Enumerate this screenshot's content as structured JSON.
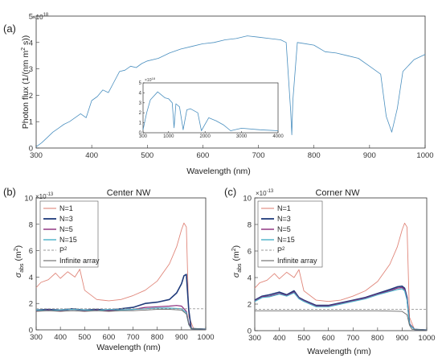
{
  "colors": {
    "spectrum": "#4a8fbf",
    "n1": "#e0867a",
    "n3": "#1f3a7a",
    "n5": "#8a2a7a",
    "n15": "#4ab0c8",
    "p2": "#999999",
    "infinite": "#666666",
    "axis": "#333333"
  },
  "panel_a": {
    "label": "(a)",
    "exponent": "×10",
    "exponent_power": "18",
    "ylabel": "Photon flux  (1/(nm m",
    "ylabel_sup": "2",
    "ylabel_end": " s))",
    "xlabel": "Wavelength (nm)"
  },
  "panel_b": {
    "label": "(b)",
    "title": "Center NW",
    "exponent": "×10",
    "exponent_power": "-13",
    "ylabel_sym": "σ",
    "ylabel_sub": "abs",
    "ylabel_unit": " (m",
    "ylabel_sup": "2",
    "ylabel_close": ")",
    "xlabel": "Wavelength (nm)"
  },
  "panel_c": {
    "label": "(c)",
    "title": "Corner NW",
    "exponent": "×10",
    "exponent_power": "-13",
    "ylabel_sym": "σ",
    "ylabel_sub": "abs",
    "ylabel_unit": " (m",
    "ylabel_sup": "2",
    "ylabel_close": ")",
    "xlabel": "Wavelength (nm)"
  },
  "legend": [
    {
      "key": "n1",
      "label": "N=1",
      "style": "solid"
    },
    {
      "key": "n3",
      "label": "N=3",
      "style": "solid"
    },
    {
      "key": "n5",
      "label": "N=5",
      "style": "solid"
    },
    {
      "key": "n15",
      "label": "N=15",
      "style": "solid"
    },
    {
      "key": "p2",
      "label": "P",
      "sup": "2",
      "style": "dashed"
    },
    {
      "key": "infinite",
      "label": "Infinite array",
      "style": "solid"
    }
  ],
  "chart_data": [
    {
      "type": "line",
      "title": "",
      "xlabel": "Wavelength (nm)",
      "ylabel": "Photon flux (1/(nm m^2 s))",
      "y_scale_exponent": 18,
      "xlim": [
        300,
        1000
      ],
      "ylim": [
        0,
        5
      ],
      "xticks": [
        300,
        400,
        500,
        600,
        700,
        800,
        900,
        1000
      ],
      "yticks": [
        0,
        1,
        2,
        3,
        4,
        5
      ],
      "series": [
        {
          "x": [
            300,
            310,
            320,
            330,
            340,
            350,
            360,
            370,
            380,
            390,
            400,
            410,
            420,
            430,
            440,
            450,
            460,
            470,
            480,
            490,
            500,
            520,
            540,
            560,
            580,
            600,
            620,
            640,
            660,
            680,
            700,
            720,
            740,
            750,
            758,
            760,
            762,
            770,
            800,
            820,
            840,
            860,
            880,
            900,
            920,
            930,
            940,
            950,
            960,
            980,
            1000
          ],
          "y": [
            0.05,
            0.2,
            0.4,
            0.6,
            0.75,
            0.9,
            1.0,
            1.15,
            1.3,
            1.15,
            1.8,
            1.95,
            2.2,
            2.1,
            2.5,
            2.9,
            2.95,
            3.1,
            3.05,
            3.2,
            3.3,
            3.4,
            3.6,
            3.75,
            3.85,
            3.95,
            4.0,
            4.1,
            4.15,
            4.25,
            4.2,
            4.15,
            4.1,
            4.0,
            1.4,
            0.5,
            1.8,
            4.0,
            3.9,
            3.65,
            3.6,
            3.5,
            3.4,
            3.1,
            2.8,
            1.2,
            0.6,
            1.5,
            2.9,
            3.35,
            3.55
          ]
        }
      ],
      "inset": {
        "xlim": [
          300,
          4000
        ],
        "ylim": [
          0,
          5
        ],
        "xticks": [
          300,
          1000,
          2000,
          3000,
          4000
        ],
        "yticks": [
          0,
          1,
          2,
          3,
          4,
          5
        ],
        "x": [
          300,
          400,
          500,
          700,
          900,
          1000,
          1100,
          1150,
          1200,
          1300,
          1400,
          1500,
          1600,
          1800,
          1900,
          2100,
          2300,
          2500,
          2700,
          3000,
          3500,
          4000
        ],
        "y": [
          0.3,
          2.0,
          3.3,
          4.1,
          3.5,
          3.4,
          3.0,
          0.5,
          2.9,
          2.6,
          0.3,
          2.3,
          2.4,
          2.0,
          0.2,
          1.5,
          1.2,
          0.8,
          0.2,
          0.45,
          0.3,
          0.2
        ]
      }
    },
    {
      "type": "line",
      "title": "Center NW",
      "xlabel": "Wavelength (nm)",
      "ylabel": "σ_abs (m^2)",
      "y_scale_exponent": -13,
      "xlim": [
        300,
        1000
      ],
      "ylim": [
        0,
        10
      ],
      "xticks": [
        300,
        400,
        500,
        600,
        700,
        800,
        900,
        1000
      ],
      "yticks": [
        0,
        2,
        4,
        6,
        8,
        10
      ],
      "series": [
        {
          "name": "N=1",
          "x": [
            300,
            320,
            350,
            380,
            400,
            430,
            460,
            480,
            500,
            550,
            600,
            650,
            700,
            750,
            800,
            850,
            880,
            900,
            910,
            920,
            930,
            950,
            1000
          ],
          "y": [
            3.2,
            3.6,
            3.8,
            4.3,
            3.9,
            4.4,
            4.0,
            4.6,
            3.0,
            2.3,
            2.2,
            2.3,
            2.6,
            3.0,
            3.7,
            5.0,
            6.3,
            7.6,
            8.1,
            7.8,
            1.0,
            0.1,
            0.05
          ]
        },
        {
          "name": "N=3",
          "x": [
            300,
            350,
            400,
            450,
            500,
            550,
            600,
            650,
            700,
            750,
            800,
            850,
            880,
            900,
            910,
            920,
            930,
            940,
            1000
          ],
          "y": [
            1.5,
            1.55,
            1.5,
            1.6,
            1.5,
            1.55,
            1.5,
            1.6,
            1.7,
            2.0,
            2.1,
            2.3,
            2.8,
            3.5,
            4.1,
            4.2,
            1.5,
            0.1,
            0.05
          ]
        },
        {
          "name": "N=5",
          "x": [
            300,
            350,
            400,
            450,
            500,
            550,
            600,
            650,
            700,
            750,
            800,
            850,
            880,
            900,
            920,
            930,
            940,
            1000
          ],
          "y": [
            1.45,
            1.5,
            1.45,
            1.55,
            1.45,
            1.5,
            1.45,
            1.5,
            1.55,
            1.7,
            1.75,
            1.8,
            1.85,
            1.8,
            1.4,
            0.5,
            0.1,
            0.05
          ]
        },
        {
          "name": "N=15",
          "x": [
            300,
            350,
            400,
            450,
            500,
            550,
            600,
            650,
            700,
            750,
            800,
            850,
            900,
            920,
            930,
            940,
            1000
          ],
          "y": [
            1.5,
            1.45,
            1.5,
            1.55,
            1.5,
            1.45,
            1.55,
            1.5,
            1.55,
            1.6,
            1.65,
            1.65,
            1.6,
            1.3,
            0.4,
            0.1,
            0.05
          ]
        },
        {
          "name": "P2",
          "x": [
            300,
            1000
          ],
          "y": [
            1.6,
            1.6
          ]
        },
        {
          "name": "Infinite array",
          "x": [
            300,
            350,
            400,
            450,
            500,
            550,
            600,
            650,
            700,
            750,
            800,
            850,
            900,
            920,
            930,
            940,
            1000
          ],
          "y": [
            1.4,
            1.45,
            1.4,
            1.45,
            1.4,
            1.45,
            1.4,
            1.45,
            1.45,
            1.5,
            1.55,
            1.55,
            1.5,
            1.2,
            0.4,
            0.1,
            0.05
          ]
        }
      ]
    },
    {
      "type": "line",
      "title": "Corner NW",
      "xlabel": "Wavelength (nm)",
      "ylabel": "σ_abs (m^2)",
      "y_scale_exponent": -13,
      "xlim": [
        300,
        1000
      ],
      "ylim": [
        0,
        10
      ],
      "xticks": [
        300,
        400,
        500,
        600,
        700,
        800,
        900,
        1000
      ],
      "yticks": [
        0,
        2,
        4,
        6,
        8,
        10
      ],
      "series": [
        {
          "name": "N=1",
          "x": [
            300,
            320,
            350,
            380,
            400,
            430,
            460,
            480,
            500,
            550,
            600,
            650,
            700,
            750,
            800,
            850,
            880,
            900,
            910,
            920,
            930,
            950,
            1000
          ],
          "y": [
            3.2,
            3.6,
            3.8,
            4.3,
            3.9,
            4.4,
            4.0,
            4.6,
            3.0,
            2.3,
            2.2,
            2.3,
            2.6,
            3.0,
            3.7,
            5.0,
            6.3,
            7.6,
            8.1,
            7.8,
            1.0,
            0.1,
            0.05
          ]
        },
        {
          "name": "N=3",
          "x": [
            300,
            330,
            360,
            400,
            430,
            460,
            480,
            500,
            550,
            600,
            650,
            700,
            750,
            800,
            850,
            880,
            900,
            910,
            920,
            930,
            950,
            1000
          ],
          "y": [
            2.3,
            2.6,
            2.7,
            2.9,
            2.7,
            3.0,
            2.5,
            2.3,
            1.9,
            1.9,
            2.1,
            2.3,
            2.5,
            2.8,
            3.1,
            3.3,
            3.35,
            3.2,
            2.5,
            0.5,
            0.1,
            0.05
          ]
        },
        {
          "name": "N=5",
          "x": [
            300,
            330,
            360,
            400,
            430,
            460,
            480,
            500,
            550,
            600,
            650,
            700,
            750,
            800,
            850,
            880,
            900,
            910,
            920,
            930,
            950,
            1000
          ],
          "y": [
            2.25,
            2.55,
            2.6,
            2.8,
            2.65,
            2.9,
            2.45,
            2.25,
            1.85,
            1.85,
            2.05,
            2.25,
            2.45,
            2.75,
            3.0,
            3.2,
            3.25,
            3.1,
            2.4,
            0.5,
            0.1,
            0.05
          ]
        },
        {
          "name": "N=15",
          "x": [
            300,
            330,
            360,
            400,
            430,
            460,
            480,
            500,
            550,
            600,
            650,
            700,
            750,
            800,
            850,
            880,
            900,
            910,
            920,
            930,
            950,
            1000
          ],
          "y": [
            2.2,
            2.5,
            2.55,
            2.75,
            2.6,
            2.85,
            2.4,
            2.2,
            1.8,
            1.8,
            2.0,
            2.2,
            2.4,
            2.7,
            2.95,
            3.1,
            3.15,
            3.0,
            2.3,
            0.45,
            0.1,
            0.05
          ]
        },
        {
          "name": "P2",
          "x": [
            300,
            1000
          ],
          "y": [
            1.6,
            1.6
          ]
        },
        {
          "name": "Infinite array",
          "x": [
            300,
            400,
            500,
            600,
            700,
            800,
            900,
            920,
            930,
            940,
            1000
          ],
          "y": [
            1.5,
            1.5,
            1.5,
            1.5,
            1.5,
            1.5,
            1.45,
            1.2,
            0.4,
            0.1,
            0.05
          ]
        }
      ]
    }
  ]
}
